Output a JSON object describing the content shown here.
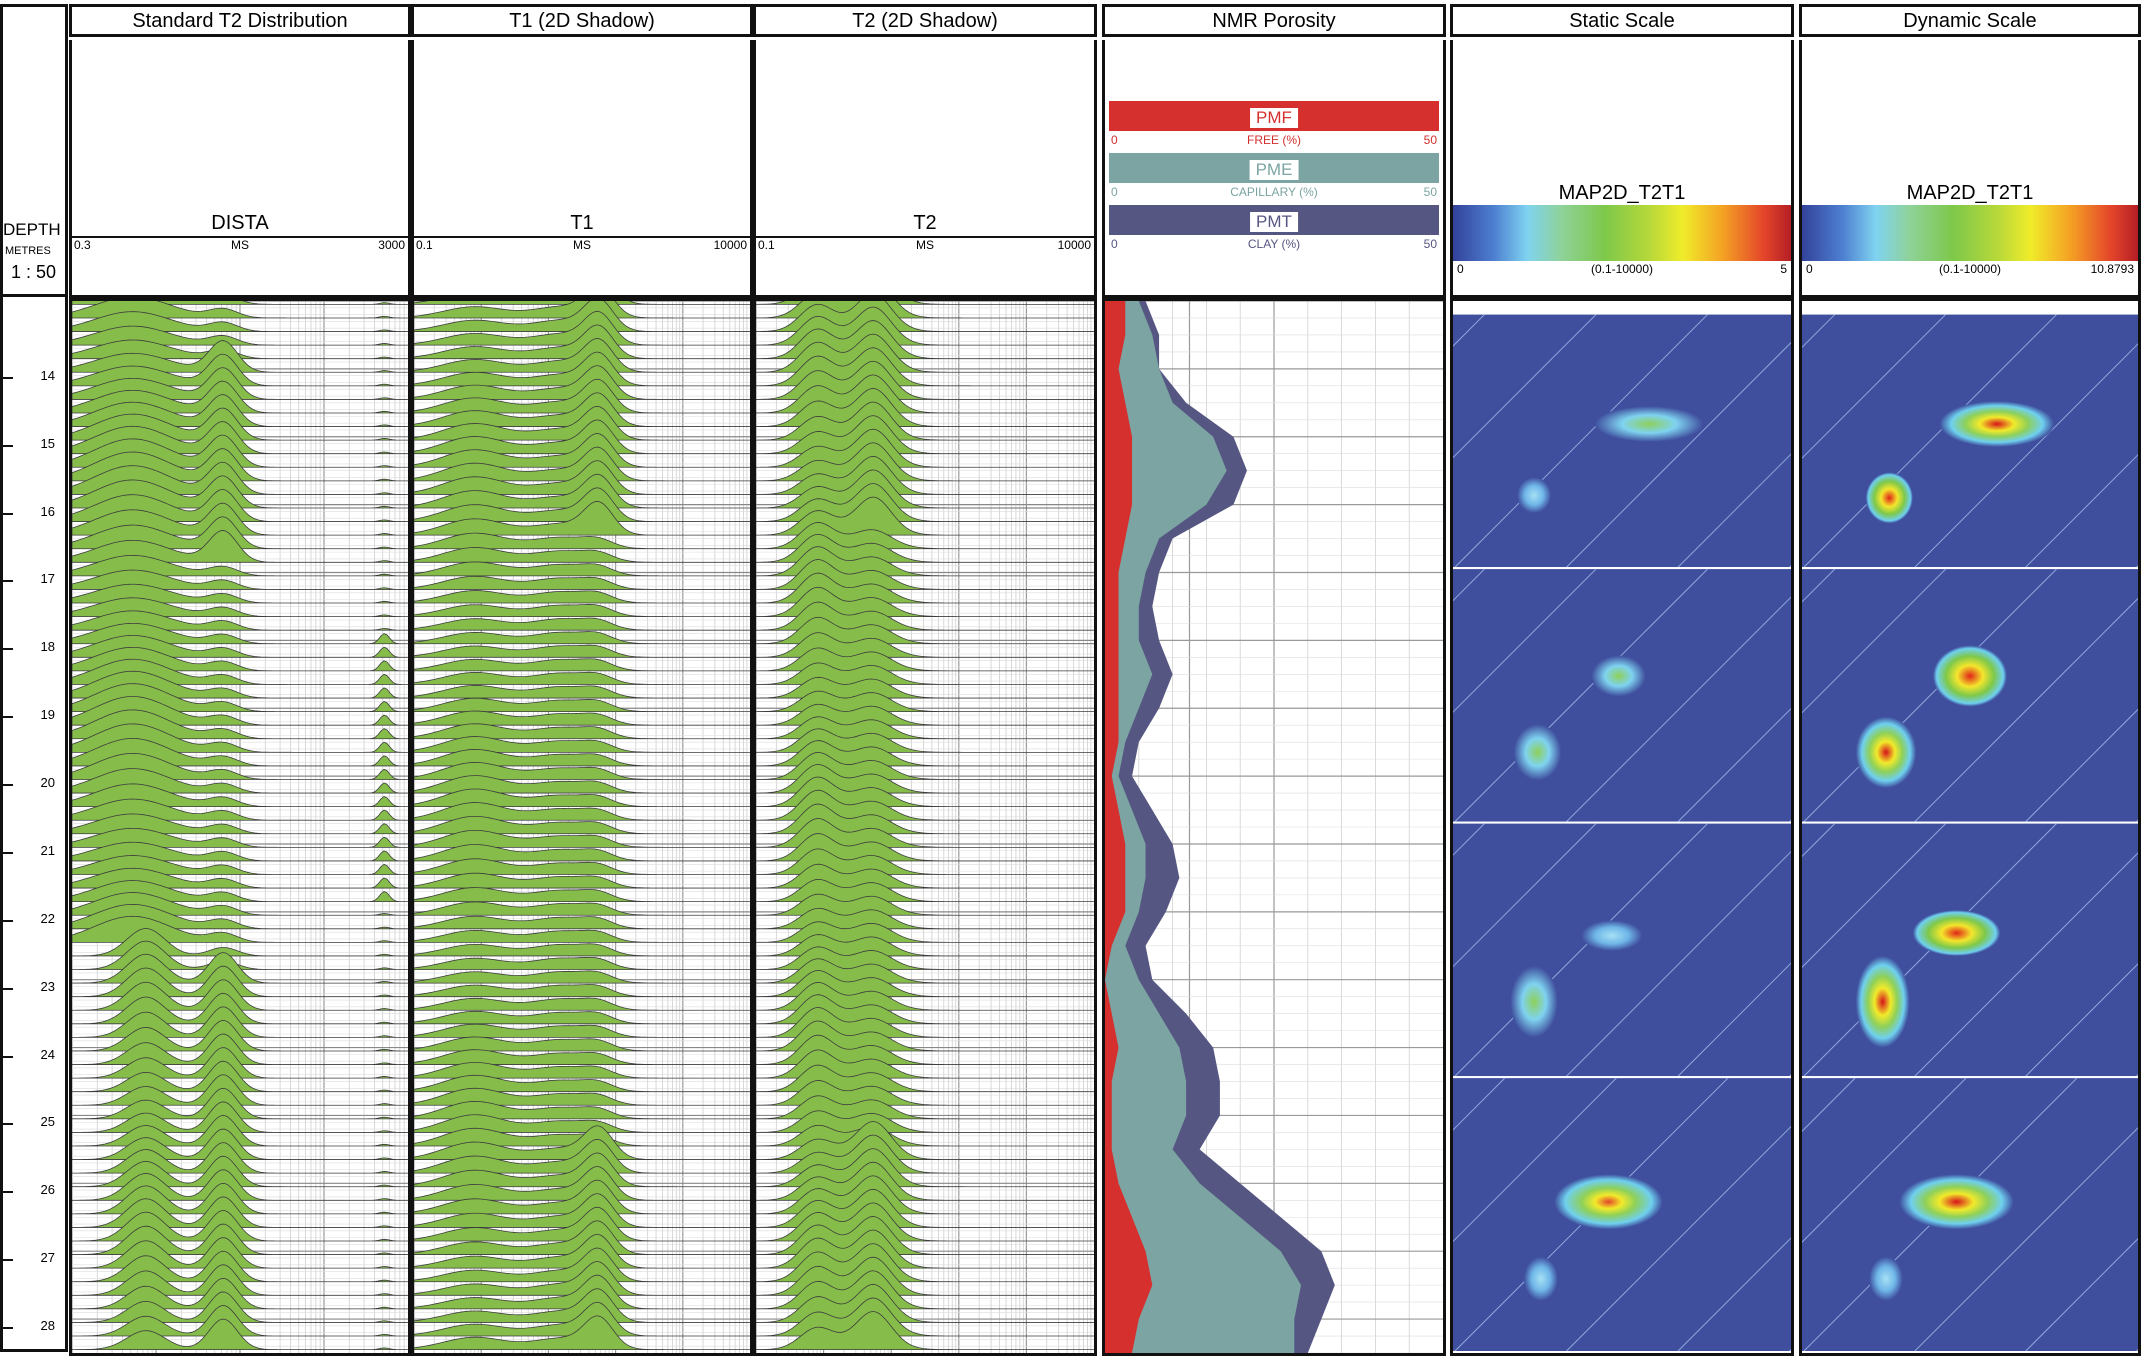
{
  "depth_header": {
    "label": "DEPTH",
    "unit": "METRES",
    "scale": "1 : 50"
  },
  "depth_ticks": [
    "14",
    "15",
    "16",
    "17",
    "18",
    "19",
    "20",
    "21",
    "22",
    "23",
    "24",
    "25",
    "26",
    "27",
    "28"
  ],
  "tracks": {
    "t2dist": {
      "title": "Standard T2 Distribution",
      "curve": "DISTA",
      "unit": "MS",
      "min": "0.3",
      "max": "3000"
    },
    "t1shadow": {
      "title": "T1 (2D Shadow)",
      "curve": "T1",
      "unit": "MS",
      "min": "0.1",
      "max": "10000"
    },
    "t2shadow": {
      "title": "T2 (2D Shadow)",
      "curve": "T2",
      "unit": "MS",
      "min": "0.1",
      "max": "10000"
    },
    "porosity": {
      "title": "NMR Porosity",
      "legend": [
        {
          "name": "PMF",
          "unit": "FREE (%)",
          "min": "0",
          "max": "50",
          "color": "#d5302e"
        },
        {
          "name": "PME",
          "unit": "CAPILLARY (%)",
          "min": "0",
          "max": "50",
          "color": "#7ba4a2"
        },
        {
          "name": "PMT",
          "unit": "CLAY (%)",
          "min": "0",
          "max": "50",
          "color": "#565682"
        }
      ]
    },
    "static": {
      "title": "Static Scale",
      "curve": "MAP2D_T2T1",
      "min": "0",
      "range": "(0.1-10000)",
      "max": "5"
    },
    "dynamic": {
      "title": "Dynamic Scale",
      "curve": "MAP2D_T2T1",
      "min": "0",
      "range": "(0.1-10000)",
      "max": "10.8793"
    }
  },
  "chart_data": {
    "type": "area",
    "title": "NMR Porosity",
    "depth_unit": "METRES",
    "depth_range": [
      13.0,
      28.5
    ],
    "xlim": [
      0,
      50
    ],
    "depth": [
      13.0,
      13.5,
      14.0,
      14.5,
      15.0,
      15.5,
      16.0,
      16.5,
      17.0,
      17.5,
      18.0,
      18.5,
      19.0,
      19.5,
      20.0,
      20.5,
      21.0,
      21.5,
      22.0,
      22.5,
      23.0,
      23.5,
      24.0,
      24.5,
      25.0,
      25.5,
      26.0,
      26.5,
      27.0,
      27.5,
      28.0,
      28.5
    ],
    "series": [
      {
        "name": "PMF",
        "values": [
          3,
          3,
          2,
          3,
          4,
          4,
          4,
          3,
          2,
          2,
          2,
          2,
          2,
          2,
          1,
          2,
          3,
          3,
          3,
          1,
          0,
          1,
          2,
          1,
          1,
          1,
          2,
          4,
          6,
          7,
          5,
          4
        ]
      },
      {
        "name": "PME",
        "values": [
          5,
          7,
          8,
          10,
          16,
          18,
          15,
          8,
          6,
          5,
          5,
          7,
          5,
          3,
          2,
          4,
          6,
          6,
          5,
          3,
          5,
          8,
          11,
          12,
          12,
          10,
          14,
          20,
          26,
          29,
          28,
          28
        ]
      },
      {
        "name": "PMT",
        "values": [
          6,
          8,
          8,
          12,
          19,
          21,
          19,
          10,
          8,
          7,
          8,
          10,
          8,
          5,
          4,
          7,
          10,
          11,
          9,
          6,
          7,
          12,
          16,
          17,
          17,
          14,
          20,
          26,
          32,
          34,
          32,
          30
        ]
      }
    ],
    "colors": {
      "PMF": "#d5302e",
      "PME": "#7ba4a2",
      "PMT": "#565682"
    },
    "grid": true
  }
}
